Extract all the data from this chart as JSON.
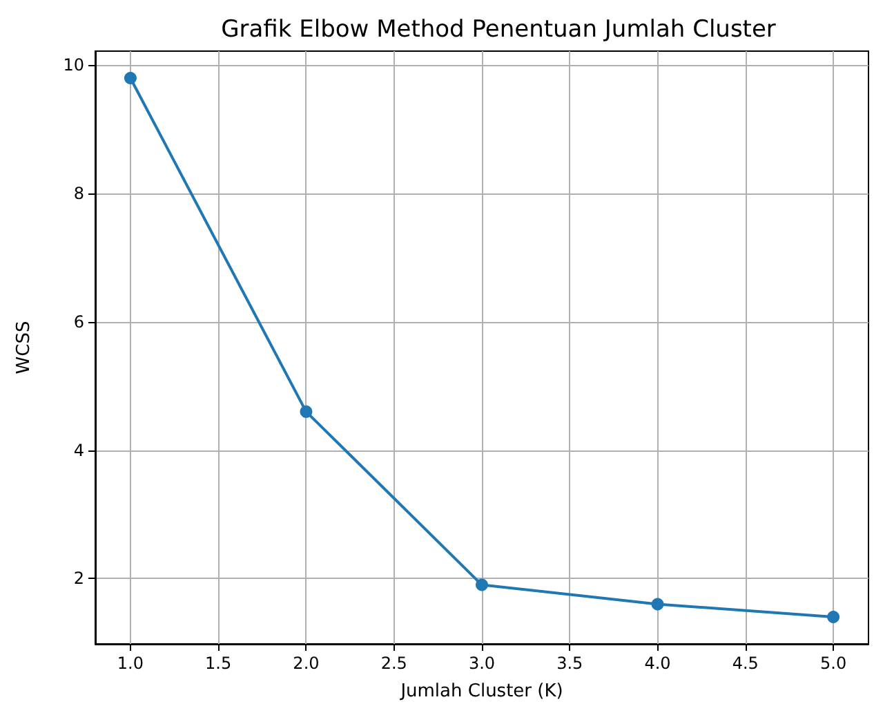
{
  "chart_data": {
    "type": "line",
    "title": "Grafik Elbow Method Penentuan Jumlah Cluster",
    "xlabel": "Jumlah Cluster (K)",
    "ylabel": "WCSS",
    "x": [
      1,
      2,
      3,
      4,
      5
    ],
    "series": [
      {
        "color": "#1f77b4",
        "values": [
          9.8,
          4.6,
          1.9,
          1.6,
          1.4
        ]
      }
    ],
    "xlim": [
      0.8,
      5.2
    ],
    "xticks": [
      {
        "value": 1,
        "label": "1.0"
      },
      {
        "value": 1.5,
        "label": "1.5"
      },
      {
        "value": 2,
        "label": "2.0"
      },
      {
        "value": 2.5,
        "label": "2.5"
      },
      {
        "value": 3,
        "label": "3.0"
      },
      {
        "value": 3.5,
        "label": "3.5"
      },
      {
        "value": 4,
        "label": "4.0"
      },
      {
        "value": 4.5,
        "label": "4.5"
      },
      {
        "value": 5,
        "label": "5.0"
      }
    ],
    "ylim": [
      0.98,
      10.22
    ],
    "yticks": [
      2,
      4,
      6,
      8,
      10
    ],
    "grid": true,
    "marker": "circle",
    "line_style": "solid"
  }
}
